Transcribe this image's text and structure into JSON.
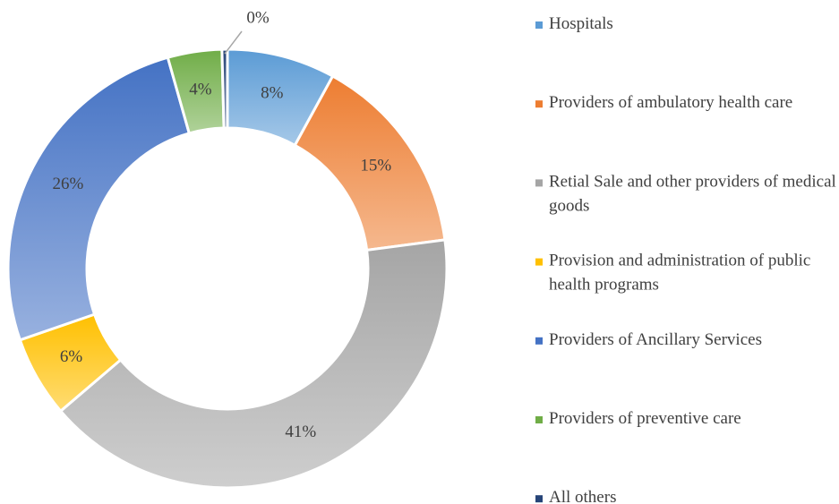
{
  "chart_data": {
    "type": "donut",
    "categories": [
      "Hospitals",
      "Providers of ambulatory health care",
      "Retial Sale and other providers of medical goods",
      "Provision and administration of public health programs",
      "Providers of Ancillary Services",
      "Providers of preventive care",
      "All others"
    ],
    "values": [
      8,
      15,
      41,
      6,
      26,
      4,
      0.4
    ],
    "value_labels": [
      "8%",
      "15%",
      "41%",
      "6%",
      "26%",
      "4%",
      "0%"
    ],
    "colors": [
      "#5b9bd5",
      "#ed7d31",
      "#a5a5a5",
      "#ffc000",
      "#4472c4",
      "#70ad47",
      "#264478"
    ],
    "legend": "right"
  }
}
